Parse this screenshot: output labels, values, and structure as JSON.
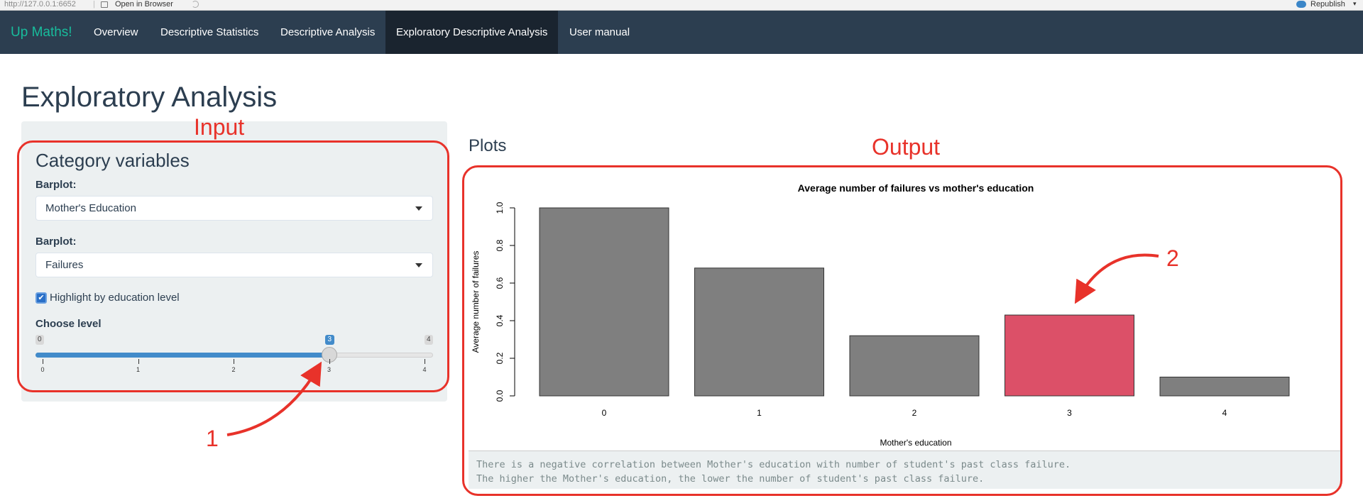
{
  "browser": {
    "url": "http://127.0.0.1:6652",
    "open_in_browser": "Open in Browser",
    "republish": "Republish"
  },
  "navbar": {
    "brand": "Up Maths!",
    "items": [
      {
        "label": "Overview"
      },
      {
        "label": "Descriptive Statistics"
      },
      {
        "label": "Descriptive Analysis"
      },
      {
        "label": "Exploratory Descriptive Analysis",
        "active": true
      },
      {
        "label": "User manual"
      }
    ]
  },
  "page": {
    "title": "Exploratory Analysis"
  },
  "sidebar": {
    "heading": "Category variables",
    "barplot1": {
      "label": "Barplot:",
      "value": "Mother's Education"
    },
    "barplot2": {
      "label": "Barplot:",
      "value": "Failures"
    },
    "highlight": {
      "label": "Highlight by education level",
      "checked": true
    },
    "slider": {
      "label": "Choose level",
      "min": 0,
      "max": 4,
      "value": 3,
      "min_label": "0",
      "max_label": "4",
      "value_label": "3",
      "ticks": [
        "0",
        "1",
        "2",
        "3",
        "4"
      ]
    }
  },
  "main": {
    "plots_heading": "Plots",
    "text_output": [
      "There is a negative correlation between Mother's education with number of student's past class failure.",
      "The higher the Mother's education, the lower the number of student's past class failure."
    ]
  },
  "annotations": {
    "input_label": "Input",
    "output_label": "Output",
    "arrow1_label": "1",
    "arrow2_label": "2",
    "color": "#e8322a"
  },
  "colors": {
    "navbar": "#2c3e50",
    "brand": "#18bc9c",
    "bar": "#7f7f7f",
    "highlight_bar": "#dc5068",
    "slider": "#428bca"
  },
  "chart_data": {
    "type": "bar",
    "title": "Average number of failures vs mother's education",
    "xlabel": "Mother's education",
    "ylabel": "Average number of failures",
    "categories": [
      "0",
      "1",
      "2",
      "3",
      "4"
    ],
    "values": [
      1.0,
      0.68,
      0.32,
      0.43,
      0.1
    ],
    "highlight_index": 3,
    "ylim": [
      0,
      1.0
    ],
    "yticks": [
      "0.0",
      "0.2",
      "0.4",
      "0.6",
      "0.8",
      "1.0"
    ],
    "ytick_values": [
      0,
      0.2,
      0.4,
      0.6,
      0.8,
      1.0
    ],
    "grid": false,
    "legend": "none"
  }
}
